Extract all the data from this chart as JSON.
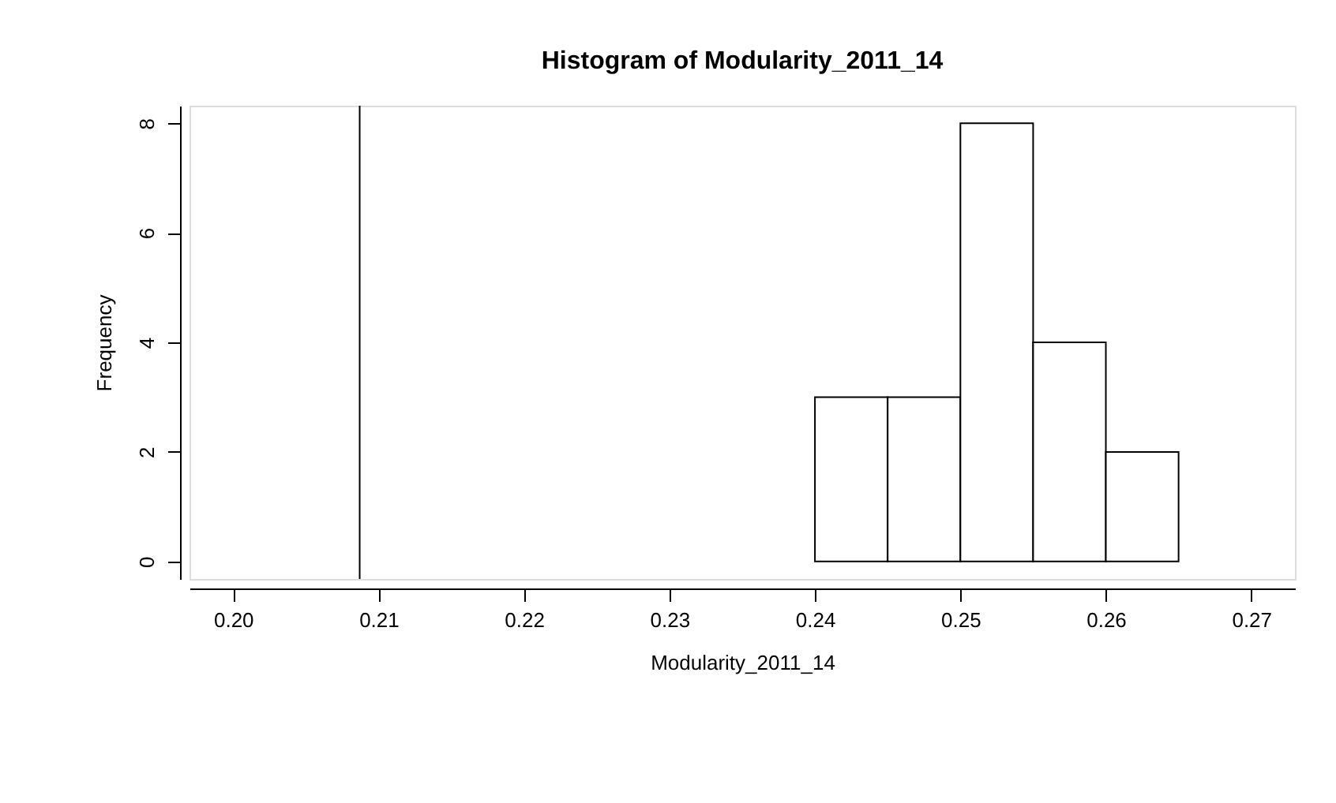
{
  "chart_data": {
    "type": "histogram",
    "title": "Histogram of Modularity_2011_14",
    "xlabel": "Modularity_2011_14",
    "ylabel": "Frequency",
    "bins": [
      0.24,
      0.245,
      0.25,
      0.255,
      0.26,
      0.265
    ],
    "values": [
      3,
      3,
      8,
      4,
      2
    ],
    "color": "#ffffff",
    "xlim": [
      0.197,
      0.273
    ],
    "ylim": [
      -0.32,
      8.32
    ],
    "xticks": [
      {
        "value": 0.2,
        "label": "0.20"
      },
      {
        "value": 0.21,
        "label": "0.21"
      },
      {
        "value": 0.22,
        "label": "0.22"
      },
      {
        "value": 0.23,
        "label": "0.23"
      },
      {
        "value": 0.24,
        "label": "0.24"
      },
      {
        "value": 0.25,
        "label": "0.25"
      },
      {
        "value": 0.26,
        "label": "0.26"
      },
      {
        "value": 0.27,
        "label": "0.27"
      }
    ],
    "yticks": [
      0,
      2,
      4,
      6,
      8
    ],
    "ref_lines": [
      {
        "axis": "x",
        "value": 0.2087,
        "color": "#000000"
      }
    ],
    "grid": false
  }
}
